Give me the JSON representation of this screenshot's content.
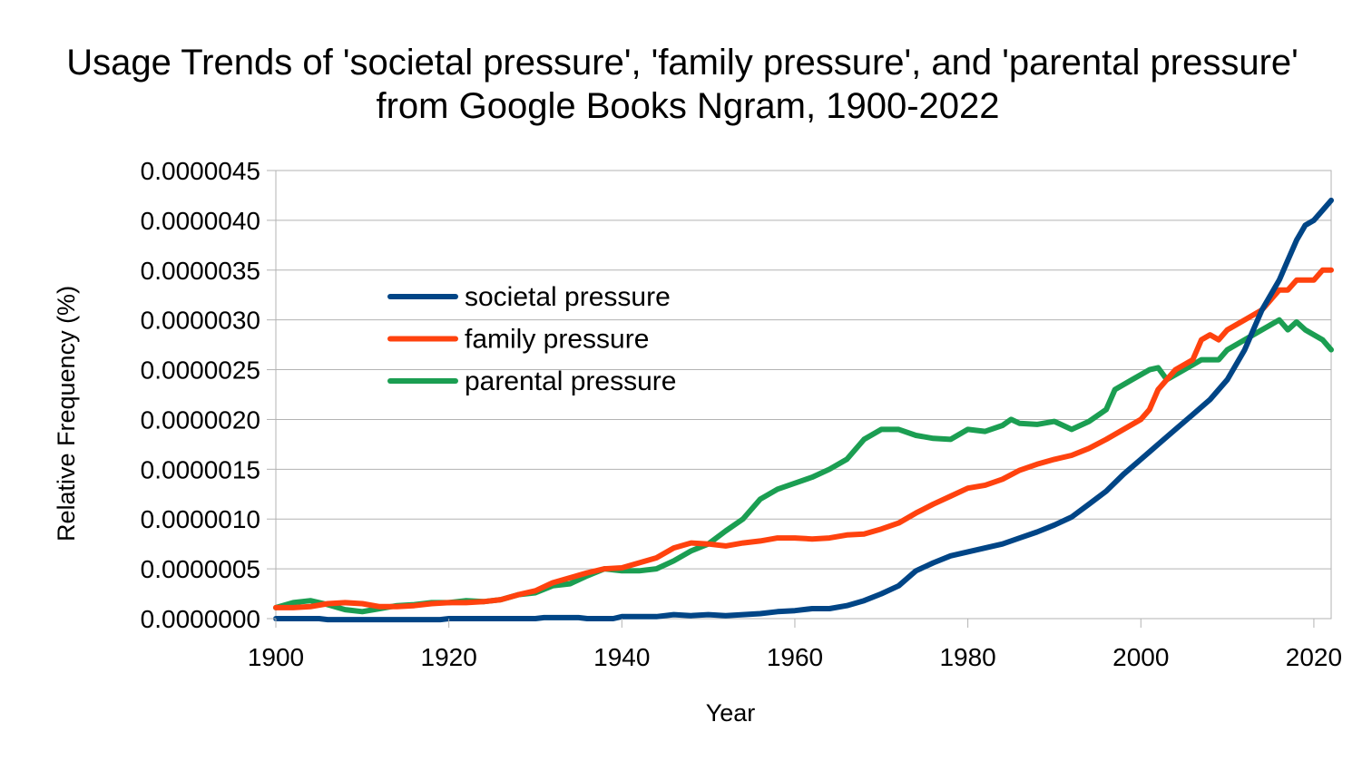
{
  "chart_data": {
    "type": "line",
    "title_lines": [
      "Usage Trends of 'societal pressure', 'family pressure', and 'parental pressure'",
      "from Google Books Ngram, 1900-2022"
    ],
    "xlabel": "Year",
    "ylabel": "Relative Frequency (%)",
    "xlim": [
      1900,
      2022
    ],
    "ylim": [
      0,
      4.5e-06
    ],
    "x_ticks": [
      1900,
      1920,
      1940,
      1960,
      1980,
      2000,
      2020
    ],
    "x_tick_labels": [
      "1900",
      "1920",
      "1940",
      "1960",
      "1980",
      "2000",
      "2020"
    ],
    "y_ticks": [
      0,
      5e-07,
      1e-06,
      1.5e-06,
      2e-06,
      2.5e-06,
      3e-06,
      3.5e-06,
      4e-06,
      4.5e-06
    ],
    "y_tick_labels": [
      "0.0000000",
      "0.0000005",
      "0.0000010",
      "0.0000015",
      "0.0000020",
      "0.0000025",
      "0.0000030",
      "0.0000035",
      "0.0000040",
      "0.0000045"
    ],
    "grid": true,
    "legend_position": "upper-left inside plot",
    "series": [
      {
        "name": "societal pressure",
        "color": "#004586",
        "points": [
          [
            1900,
            0
          ],
          [
            1905,
            0
          ],
          [
            1906,
            -1e-08
          ],
          [
            1919,
            -1e-08
          ],
          [
            1920,
            0
          ],
          [
            1930,
            0
          ],
          [
            1931,
            1e-08
          ],
          [
            1935,
            1e-08
          ],
          [
            1936,
            0
          ],
          [
            1939,
            0
          ],
          [
            1940,
            2e-08
          ],
          [
            1944,
            2e-08
          ],
          [
            1946,
            4e-08
          ],
          [
            1948,
            3e-08
          ],
          [
            1950,
            4e-08
          ],
          [
            1952,
            3e-08
          ],
          [
            1954,
            4e-08
          ],
          [
            1956,
            5e-08
          ],
          [
            1958,
            7e-08
          ],
          [
            1960,
            8e-08
          ],
          [
            1962,
            1e-07
          ],
          [
            1964,
            1e-07
          ],
          [
            1966,
            1.3e-07
          ],
          [
            1968,
            1.8e-07
          ],
          [
            1970,
            2.5e-07
          ],
          [
            1972,
            3.3e-07
          ],
          [
            1974,
            4.8e-07
          ],
          [
            1976,
            5.6e-07
          ],
          [
            1978,
            6.3e-07
          ],
          [
            1980,
            6.7e-07
          ],
          [
            1982,
            7.1e-07
          ],
          [
            1984,
            7.5e-07
          ],
          [
            1986,
            8.1e-07
          ],
          [
            1988,
            8.7e-07
          ],
          [
            1990,
            9.4e-07
          ],
          [
            1992,
            1.02e-06
          ],
          [
            1994,
            1.15e-06
          ],
          [
            1996,
            1.28e-06
          ],
          [
            1998,
            1.45e-06
          ],
          [
            2000,
            1.6e-06
          ],
          [
            2002,
            1.75e-06
          ],
          [
            2004,
            1.9e-06
          ],
          [
            2006,
            2.05e-06
          ],
          [
            2008,
            2.2e-06
          ],
          [
            2010,
            2.4e-06
          ],
          [
            2012,
            2.7e-06
          ],
          [
            2014,
            3.1e-06
          ],
          [
            2016,
            3.4e-06
          ],
          [
            2017,
            3.6e-06
          ],
          [
            2018,
            3.8e-06
          ],
          [
            2019,
            3.95e-06
          ],
          [
            2020,
            4e-06
          ],
          [
            2021,
            4.1e-06
          ],
          [
            2022,
            4.2e-06
          ]
        ]
      },
      {
        "name": "family pressure",
        "color": "#ff420e",
        "points": [
          [
            1900,
            1.1e-07
          ],
          [
            1902,
            1.1e-07
          ],
          [
            1904,
            1.2e-07
          ],
          [
            1906,
            1.5e-07
          ],
          [
            1908,
            1.6e-07
          ],
          [
            1910,
            1.5e-07
          ],
          [
            1912,
            1.2e-07
          ],
          [
            1914,
            1.2e-07
          ],
          [
            1916,
            1.3e-07
          ],
          [
            1918,
            1.5e-07
          ],
          [
            1920,
            1.6e-07
          ],
          [
            1922,
            1.6e-07
          ],
          [
            1924,
            1.7e-07
          ],
          [
            1926,
            1.9e-07
          ],
          [
            1928,
            2.4e-07
          ],
          [
            1930,
            2.8e-07
          ],
          [
            1932,
            3.6e-07
          ],
          [
            1934,
            4.1e-07
          ],
          [
            1936,
            4.6e-07
          ],
          [
            1938,
            5e-07
          ],
          [
            1940,
            5.1e-07
          ],
          [
            1942,
            5.6e-07
          ],
          [
            1944,
            6.1e-07
          ],
          [
            1946,
            7.1e-07
          ],
          [
            1948,
            7.6e-07
          ],
          [
            1950,
            7.5e-07
          ],
          [
            1952,
            7.3e-07
          ],
          [
            1954,
            7.6e-07
          ],
          [
            1956,
            7.8e-07
          ],
          [
            1958,
            8.1e-07
          ],
          [
            1960,
            8.1e-07
          ],
          [
            1962,
            8e-07
          ],
          [
            1964,
            8.1e-07
          ],
          [
            1966,
            8.4e-07
          ],
          [
            1968,
            8.5e-07
          ],
          [
            1970,
            9e-07
          ],
          [
            1972,
            9.6e-07
          ],
          [
            1974,
            1.06e-06
          ],
          [
            1976,
            1.15e-06
          ],
          [
            1978,
            1.23e-06
          ],
          [
            1980,
            1.31e-06
          ],
          [
            1982,
            1.34e-06
          ],
          [
            1984,
            1.4e-06
          ],
          [
            1986,
            1.49e-06
          ],
          [
            1988,
            1.55e-06
          ],
          [
            1990,
            1.6e-06
          ],
          [
            1992,
            1.64e-06
          ],
          [
            1994,
            1.71e-06
          ],
          [
            1996,
            1.8e-06
          ],
          [
            1998,
            1.9e-06
          ],
          [
            2000,
            2e-06
          ],
          [
            2001,
            2.1e-06
          ],
          [
            2002,
            2.3e-06
          ],
          [
            2004,
            2.5e-06
          ],
          [
            2006,
            2.6e-06
          ],
          [
            2007,
            2.8e-06
          ],
          [
            2008,
            2.85e-06
          ],
          [
            2009,
            2.8e-06
          ],
          [
            2010,
            2.9e-06
          ],
          [
            2012,
            3e-06
          ],
          [
            2014,
            3.1e-06
          ],
          [
            2016,
            3.3e-06
          ],
          [
            2017,
            3.3e-06
          ],
          [
            2018,
            3.4e-06
          ],
          [
            2020,
            3.4e-06
          ],
          [
            2021,
            3.5e-06
          ],
          [
            2022,
            3.5e-06
          ]
        ]
      },
      {
        "name": "parental pressure",
        "color": "#1b9e52",
        "points": [
          [
            1900,
            1.1e-07
          ],
          [
            1902,
            1.6e-07
          ],
          [
            1904,
            1.8e-07
          ],
          [
            1906,
            1.4e-07
          ],
          [
            1908,
            9e-08
          ],
          [
            1910,
            7e-08
          ],
          [
            1912,
            1e-07
          ],
          [
            1914,
            1.3e-07
          ],
          [
            1916,
            1.4e-07
          ],
          [
            1918,
            1.6e-07
          ],
          [
            1920,
            1.6e-07
          ],
          [
            1922,
            1.8e-07
          ],
          [
            1924,
            1.7e-07
          ],
          [
            1926,
            1.9e-07
          ],
          [
            1928,
            2.4e-07
          ],
          [
            1930,
            2.6e-07
          ],
          [
            1932,
            3.3e-07
          ],
          [
            1934,
            3.5e-07
          ],
          [
            1936,
            4.3e-07
          ],
          [
            1938,
            5e-07
          ],
          [
            1940,
            4.8e-07
          ],
          [
            1942,
            4.8e-07
          ],
          [
            1944,
            5e-07
          ],
          [
            1946,
            5.8e-07
          ],
          [
            1948,
            6.8e-07
          ],
          [
            1950,
            7.5e-07
          ],
          [
            1952,
            8.8e-07
          ],
          [
            1954,
            1e-06
          ],
          [
            1956,
            1.2e-06
          ],
          [
            1958,
            1.3e-06
          ],
          [
            1960,
            1.36e-06
          ],
          [
            1962,
            1.42e-06
          ],
          [
            1964,
            1.5e-06
          ],
          [
            1966,
            1.6e-06
          ],
          [
            1968,
            1.8e-06
          ],
          [
            1970,
            1.9e-06
          ],
          [
            1972,
            1.9e-06
          ],
          [
            1974,
            1.84e-06
          ],
          [
            1976,
            1.81e-06
          ],
          [
            1978,
            1.8e-06
          ],
          [
            1980,
            1.9e-06
          ],
          [
            1982,
            1.88e-06
          ],
          [
            1984,
            1.94e-06
          ],
          [
            1985,
            2e-06
          ],
          [
            1986,
            1.96e-06
          ],
          [
            1988,
            1.95e-06
          ],
          [
            1990,
            1.98e-06
          ],
          [
            1992,
            1.9e-06
          ],
          [
            1994,
            1.98e-06
          ],
          [
            1996,
            2.1e-06
          ],
          [
            1997,
            2.3e-06
          ],
          [
            1999,
            2.4e-06
          ],
          [
            2001,
            2.5e-06
          ],
          [
            2002,
            2.52e-06
          ],
          [
            2003,
            2.4e-06
          ],
          [
            2005,
            2.5e-06
          ],
          [
            2007,
            2.6e-06
          ],
          [
            2009,
            2.6e-06
          ],
          [
            2010,
            2.7e-06
          ],
          [
            2012,
            2.8e-06
          ],
          [
            2014,
            2.9e-06
          ],
          [
            2016,
            3e-06
          ],
          [
            2017,
            2.9e-06
          ],
          [
            2018,
            2.98e-06
          ],
          [
            2019,
            2.9e-06
          ],
          [
            2021,
            2.8e-06
          ],
          [
            2022,
            2.7e-06
          ]
        ]
      }
    ]
  }
}
